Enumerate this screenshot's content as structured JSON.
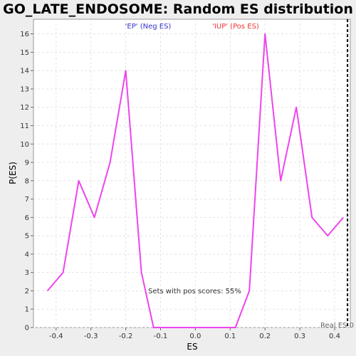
{
  "chart_data": {
    "type": "line",
    "title": "GO_LATE_ENDOSOME: Random ES distribution",
    "xlabel": "ES",
    "ylabel": "P(ES)",
    "xlim": [
      -0.465,
      0.445
    ],
    "ylim": [
      0,
      16.8
    ],
    "xticks": [
      -0.4,
      -0.3,
      -0.2,
      -0.1,
      0.0,
      0.1,
      0.2,
      0.3,
      0.4
    ],
    "xtick_labels": [
      "-0.4",
      "-0.3",
      "-0.2",
      "-0.1",
      "0.0",
      "0.1",
      "0.2",
      "0.3",
      "0.4"
    ],
    "yticks": [
      0,
      1,
      2,
      3,
      4,
      5,
      6,
      7,
      8,
      9,
      10,
      11,
      12,
      13,
      14,
      15,
      16
    ],
    "grid": true,
    "series": [
      {
        "color": "#ee44ee",
        "x": [
          -0.425,
          -0.38,
          -0.335,
          -0.29,
          -0.245,
          -0.2,
          -0.155,
          -0.12,
          -0.08,
          0.0,
          0.07,
          0.115,
          0.155,
          0.2,
          0.245,
          0.29,
          0.335,
          0.38,
          0.425
        ],
        "y": [
          2,
          3,
          8,
          6,
          9,
          14,
          3,
          0,
          0,
          0,
          0,
          0,
          2,
          16,
          8,
          12,
          6,
          5,
          6
        ]
      }
    ],
    "real_es": {
      "x": 0.437,
      "label": "Real ES 0"
    },
    "annotations": {
      "neg_label": "'EP' (Neg ES)",
      "neg_color": "#3333cc",
      "pos_label": "'IUP' (Pos ES)",
      "pos_color": "#ee3333",
      "pos_scores": "Sets with pos scores: 55%"
    }
  }
}
